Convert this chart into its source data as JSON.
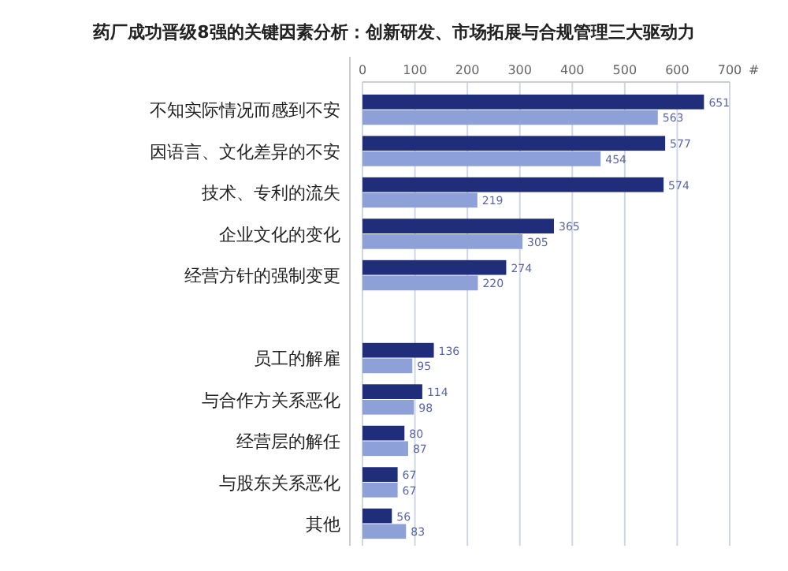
{
  "chart_data": {
    "type": "bar",
    "orientation": "horizontal",
    "title": "药厂成功晋级8强的关键因素分析：创新研发、市场拓展与合规管理三大驱动力",
    "xlabel": "#",
    "categories": [
      "不知实际情况而感到不安",
      "因语言、文化差异的不安",
      "技术、专利的流失",
      "企业文化的变化",
      "经营方针的强制变更",
      null,
      "员工的解雇",
      "与合作方关系恶化",
      "经营层的解任",
      "与股东关系恶化",
      "其他"
    ],
    "series": [
      {
        "color": "#1f2d7a",
        "values": [
          651,
          577,
          574,
          365,
          274,
          null,
          136,
          114,
          80,
          67,
          56
        ]
      },
      {
        "color": "#8ea0d8",
        "values": [
          563,
          454,
          219,
          305,
          220,
          null,
          95,
          98,
          87,
          67,
          83
        ]
      }
    ],
    "xlim": [
      0,
      700
    ],
    "xticks": [
      0,
      100,
      200,
      300,
      400,
      500,
      600,
      700
    ],
    "grid": "x",
    "data_labels": true
  }
}
